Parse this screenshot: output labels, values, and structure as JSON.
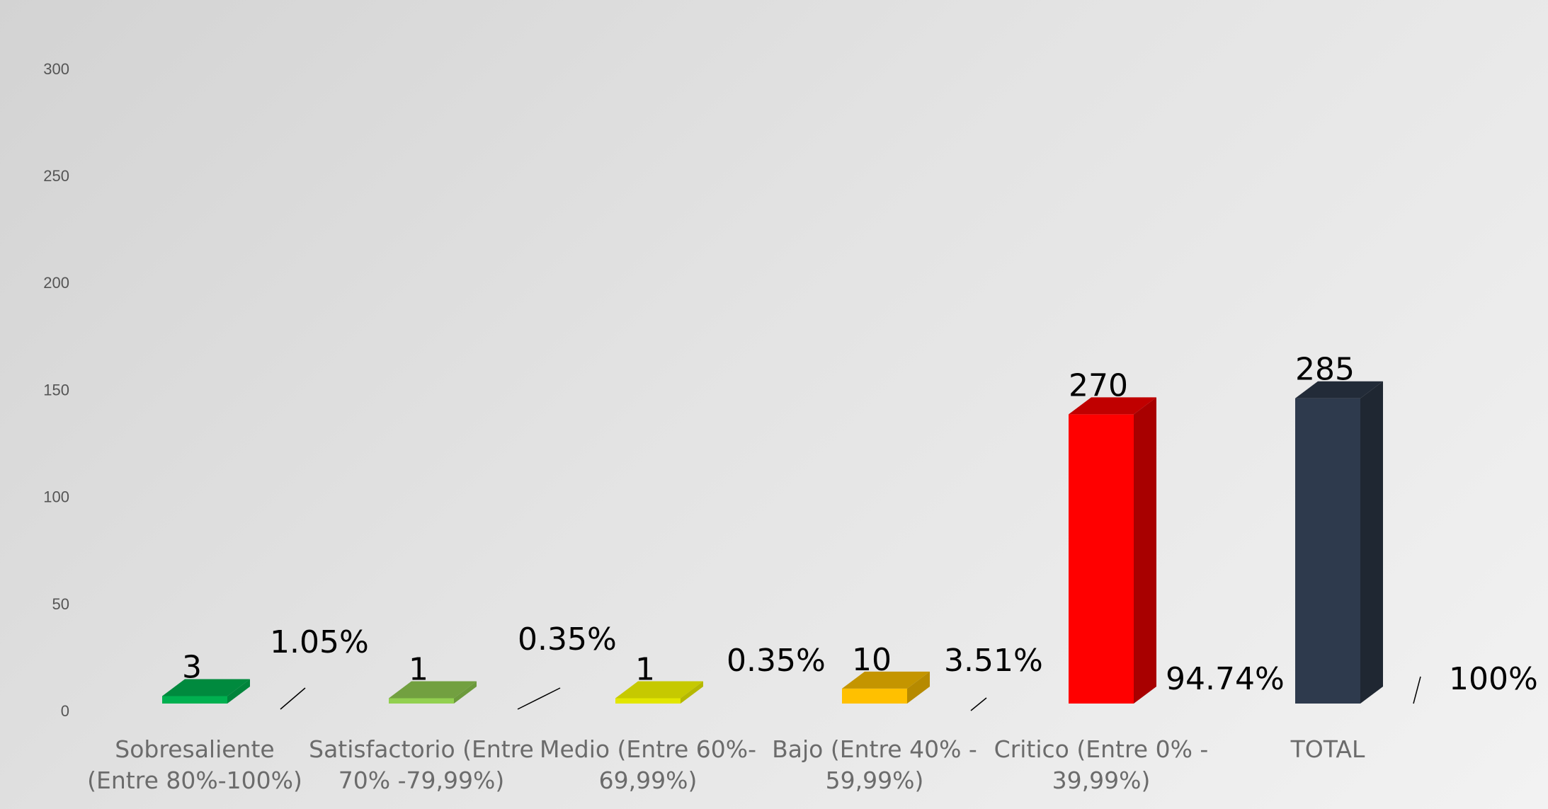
{
  "chart_data": {
    "type": "bar",
    "title": "",
    "xlabel": "",
    "ylabel": "",
    "ylim": [
      0,
      300
    ],
    "yticks": [
      "0",
      "50",
      "100",
      "150",
      "200",
      "250",
      "300"
    ],
    "grid": false,
    "legend": "none",
    "three_d": true,
    "categories": [
      {
        "lines": [
          "Sobresaliente",
          "(Entre 80%-100%)"
        ],
        "value": 3,
        "value_label": "3",
        "percent_label": "1.05%",
        "front_color": "#00B050",
        "top_color": "#008A3E",
        "side_color": "#00843B"
      },
      {
        "lines": [
          "Satisfactorio (Entre",
          "70% -79,99%)"
        ],
        "value": 1,
        "value_label": "1",
        "percent_label": "0.35%",
        "front_color": "#92D050",
        "top_color": "#72A040",
        "side_color": "#6C9A3C"
      },
      {
        "lines": [
          "Medio (Entre 60%-",
          "69,99%)"
        ],
        "value": 1,
        "value_label": "1",
        "percent_label": "0.35%",
        "front_color": "#E2E600",
        "top_color": "#C6C900",
        "side_color": "#B5B800"
      },
      {
        "lines": [
          "Bajo (Entre 40% -",
          "59,99%)"
        ],
        "value": 10,
        "value_label": "10",
        "percent_label": "3.51%",
        "front_color": "#FFC000",
        "top_color": "#C49500",
        "side_color": "#B68A00"
      },
      {
        "lines": [
          "Critico (Entre 0% -",
          "39,99%)"
        ],
        "value": 270,
        "value_label": "270",
        "percent_label": "94.74%",
        "front_color": "#FF0000",
        "top_color": "#C00000",
        "side_color": "#A80000"
      },
      {
        "lines": [
          "TOTAL"
        ],
        "value": 285,
        "value_label": "285",
        "percent_label": "100%",
        "front_color": "#2E3A4D",
        "top_color": "#222B38",
        "side_color": "#1F2732"
      }
    ]
  }
}
